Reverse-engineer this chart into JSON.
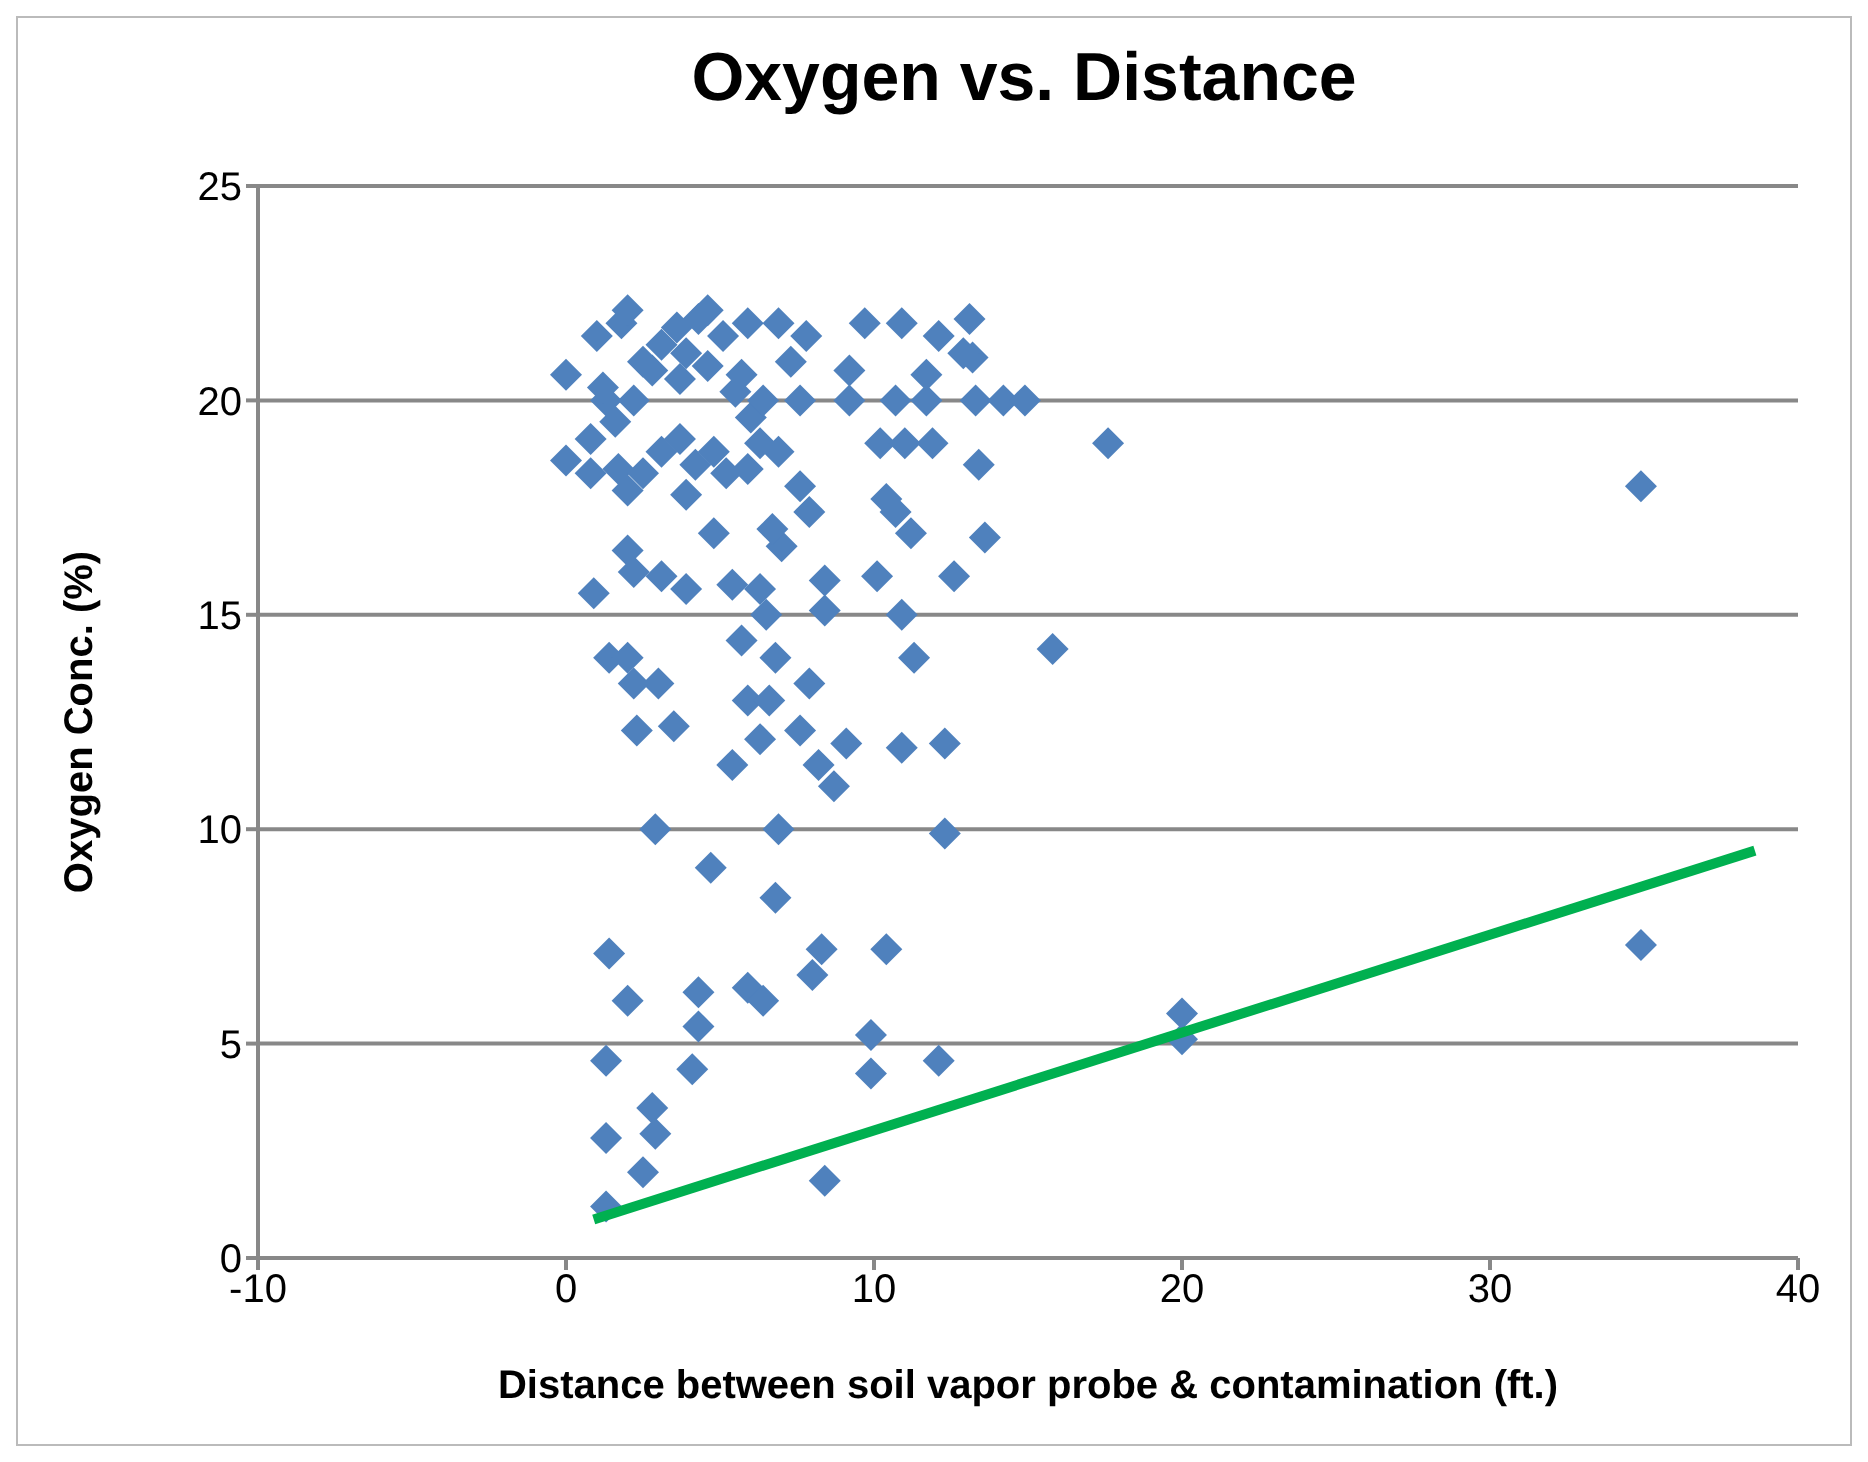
{
  "chart_data": {
    "type": "scatter",
    "title": "Oxygen vs. Distance",
    "xlabel": "Distance between soil vapor probe & contamination (ft.)",
    "ylabel": "Oxygen Conc. (%)",
    "xlim": [
      -10,
      40
    ],
    "xticks": [
      -10,
      0,
      10,
      20,
      30,
      40
    ],
    "ylim": [
      0,
      25
    ],
    "yticks": [
      0,
      5,
      10,
      15,
      20,
      25
    ],
    "grid": "y",
    "series": [
      {
        "type": "scatter",
        "marker": "diamond",
        "color": "#4f81bd",
        "x": [
          1.3,
          1.3,
          2.5,
          2.8,
          2.9,
          1.3,
          2.0,
          1.4,
          4.1,
          4.3,
          4.3,
          5.9,
          6.4,
          8.3,
          8.0,
          8.4,
          9.9,
          9.9,
          10.4,
          12.1,
          20,
          20,
          34.9,
          34.9,
          2.9,
          4.7,
          6.9,
          6.8,
          8.2,
          8.7,
          9.1,
          10.9,
          12.3,
          12.3,
          5.4,
          6.3,
          7.6,
          2.3,
          3.5,
          3.0,
          2.2,
          1.4,
          2.0,
          5.9,
          6.6,
          6.8,
          5.7,
          7.9,
          11.3,
          15.8,
          10.9,
          12.6,
          0.9,
          3.9,
          5.4,
          6.3,
          6.5,
          8.4,
          8.4,
          10.1,
          11.2,
          13.6,
          7.0,
          6.7,
          4.8,
          3.1,
          2.2,
          2.0,
          0,
          0.8,
          1.7,
          2.0,
          2.5,
          3.1,
          3.9,
          4.2,
          4.8,
          5.2,
          5.9,
          6.3,
          6.9,
          7.6,
          7.9,
          10.4,
          10.7,
          13.4,
          17.6,
          10.2,
          11.0,
          11.9,
          6.0,
          1.6,
          0.8,
          3.7,
          1.3,
          2.2,
          5.5,
          6.4,
          7.6,
          9.2,
          10.7,
          11.7,
          13.3,
          14.2,
          14.9,
          0,
          1.2,
          2.8,
          3.7,
          4.6,
          5.7,
          7.3,
          9.2,
          11.7,
          13.2,
          1.0,
          1.8,
          2.0,
          3.1,
          3.6,
          4.3,
          4.6,
          5.1,
          5.9,
          6.9,
          7.8,
          9.7,
          10.9,
          12.1,
          13.1,
          12.9,
          3.9,
          2.5
        ],
        "values": [
          1.2,
          2.8,
          2.0,
          3.5,
          2.9,
          4.6,
          6.0,
          7.1,
          4.4,
          6.2,
          5.4,
          6.3,
          6.0,
          7.2,
          6.6,
          1.8,
          5.2,
          4.3,
          7.2,
          4.6,
          5.7,
          5.1,
          7.3,
          18.0,
          10.0,
          9.1,
          10.0,
          8.4,
          11.5,
          11.0,
          12.0,
          11.9,
          12.0,
          9.9,
          11.5,
          12.1,
          12.3,
          12.3,
          12.4,
          13.4,
          13.4,
          14.0,
          14.0,
          13.0,
          13.0,
          14.0,
          14.4,
          13.4,
          14.0,
          14.2,
          15.0,
          15.9,
          15.5,
          15.6,
          15.7,
          15.6,
          15.0,
          15.1,
          15.8,
          15.9,
          16.9,
          16.8,
          16.6,
          17.0,
          16.9,
          15.9,
          16.0,
          16.5,
          18.6,
          18.3,
          18.4,
          17.9,
          18.3,
          18.8,
          17.8,
          18.5,
          18.8,
          18.3,
          18.4,
          19.0,
          18.8,
          18.0,
          17.4,
          17.7,
          17.4,
          18.5,
          19.0,
          19.0,
          19.0,
          19.0,
          19.6,
          19.5,
          19.1,
          19.1,
          20.0,
          20.0,
          20.2,
          20.0,
          20.0,
          20.0,
          20.0,
          20.0,
          20.0,
          20.0,
          20.0,
          20.6,
          20.3,
          20.7,
          20.5,
          20.8,
          20.6,
          20.9,
          20.7,
          20.6,
          21.0,
          21.5,
          21.8,
          22.1,
          21.3,
          21.7,
          21.9,
          22.1,
          21.5,
          21.8,
          21.8,
          21.5,
          21.8,
          21.8,
          21.5,
          21.9,
          21.1,
          21.1,
          20.9
        ]
      },
      {
        "type": "line",
        "marker": "none",
        "color": "#00b050",
        "x": [
          0.9,
          38.6
        ],
        "values": [
          0.9,
          9.5
        ]
      }
    ]
  }
}
